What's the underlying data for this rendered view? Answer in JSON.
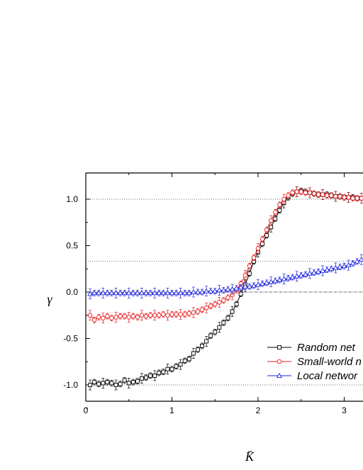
{
  "chart_data": {
    "type": "line",
    "title": "",
    "xlabel": "K̄",
    "ylabel": "γ",
    "xlim": [
      0,
      3.25
    ],
    "ylim": [
      -1.3,
      1.27
    ],
    "x_ticks": [
      "0",
      "1",
      "2",
      "3"
    ],
    "y_ticks": [
      "-1.0",
      "-0.5",
      "0.0",
      "0.5",
      "1.0"
    ],
    "reference_lines": [
      1.0,
      0.33,
      0.0,
      -1.0
    ],
    "legend_position": "bottom-right",
    "series": [
      {
        "name": "Random net",
        "color": "#000000",
        "marker": "square",
        "x": [
          0.05,
          0.1,
          0.15,
          0.2,
          0.25,
          0.3,
          0.35,
          0.4,
          0.45,
          0.5,
          0.55,
          0.6,
          0.65,
          0.7,
          0.75,
          0.8,
          0.85,
          0.9,
          0.95,
          1.0,
          1.05,
          1.1,
          1.15,
          1.2,
          1.25,
          1.3,
          1.35,
          1.4,
          1.45,
          1.5,
          1.55,
          1.6,
          1.65,
          1.7,
          1.75,
          1.8,
          1.85,
          1.9,
          1.95,
          2.0,
          2.05,
          2.1,
          2.15,
          2.2,
          2.25,
          2.3,
          2.35,
          2.4,
          2.45,
          2.5,
          2.55,
          2.6,
          2.65,
          2.7,
          2.75,
          2.8,
          2.85,
          2.9,
          2.95,
          3.0,
          3.05,
          3.1,
          3.15,
          3.2
        ],
        "y": [
          -1.0,
          -0.97,
          -0.99,
          -0.98,
          -0.97,
          -0.98,
          -1.0,
          -0.99,
          -0.95,
          -0.98,
          -0.97,
          -0.96,
          -0.93,
          -0.92,
          -0.9,
          -0.9,
          -0.87,
          -0.86,
          -0.83,
          -0.83,
          -0.8,
          -0.78,
          -0.74,
          -0.72,
          -0.66,
          -0.62,
          -0.58,
          -0.53,
          -0.47,
          -0.43,
          -0.38,
          -0.33,
          -0.28,
          -0.21,
          -0.13,
          -0.02,
          0.08,
          0.2,
          0.33,
          0.43,
          0.52,
          0.61,
          0.7,
          0.79,
          0.88,
          0.96,
          1.02,
          1.06,
          1.08,
          1.09,
          1.08,
          1.07,
          1.06,
          1.05,
          1.05,
          1.05,
          1.04,
          1.03,
          1.03,
          1.02,
          1.02,
          1.02,
          1.01,
          1.01
        ]
      },
      {
        "name": "Small-world n",
        "color": "#e8191c",
        "marker": "circle",
        "x": [
          0.05,
          0.1,
          0.15,
          0.2,
          0.25,
          0.3,
          0.35,
          0.4,
          0.45,
          0.5,
          0.55,
          0.6,
          0.65,
          0.7,
          0.75,
          0.8,
          0.85,
          0.9,
          0.95,
          1.0,
          1.05,
          1.1,
          1.15,
          1.2,
          1.25,
          1.3,
          1.35,
          1.4,
          1.45,
          1.5,
          1.55,
          1.6,
          1.65,
          1.7,
          1.75,
          1.8,
          1.85,
          1.9,
          1.95,
          2.0,
          2.05,
          2.1,
          2.15,
          2.2,
          2.25,
          2.3,
          2.35,
          2.4,
          2.45,
          2.5,
          2.55,
          2.6,
          2.65,
          2.7,
          2.75,
          2.8,
          2.85,
          2.9,
          2.95,
          3.0,
          3.05,
          3.1,
          3.15,
          3.2
        ],
        "y": [
          -0.25,
          -0.3,
          -0.27,
          -0.28,
          -0.26,
          -0.28,
          -0.27,
          -0.26,
          -0.26,
          -0.27,
          -0.26,
          -0.27,
          -0.25,
          -0.26,
          -0.25,
          -0.25,
          -0.25,
          -0.24,
          -0.25,
          -0.24,
          -0.24,
          -0.24,
          -0.24,
          -0.23,
          -0.22,
          -0.21,
          -0.19,
          -0.17,
          -0.15,
          -0.13,
          -0.11,
          -0.09,
          -0.06,
          -0.03,
          0.02,
          0.09,
          0.18,
          0.28,
          0.37,
          0.47,
          0.57,
          0.67,
          0.77,
          0.86,
          0.94,
          1.0,
          1.04,
          1.07,
          1.08,
          1.08,
          1.07,
          1.07,
          1.06,
          1.05,
          1.05,
          1.04,
          1.04,
          1.03,
          1.03,
          1.02,
          1.02,
          1.01,
          1.01,
          1.01
        ]
      },
      {
        "name": "Local networ",
        "color": "#1a22e0",
        "marker": "triangle",
        "x": [
          0.05,
          0.1,
          0.15,
          0.2,
          0.25,
          0.3,
          0.35,
          0.4,
          0.45,
          0.5,
          0.55,
          0.6,
          0.65,
          0.7,
          0.75,
          0.8,
          0.85,
          0.9,
          0.95,
          1.0,
          1.05,
          1.1,
          1.15,
          1.2,
          1.25,
          1.3,
          1.35,
          1.4,
          1.45,
          1.5,
          1.55,
          1.6,
          1.65,
          1.7,
          1.75,
          1.8,
          1.85,
          1.9,
          1.95,
          2.0,
          2.05,
          2.1,
          2.15,
          2.2,
          2.25,
          2.3,
          2.35,
          2.4,
          2.45,
          2.5,
          2.55,
          2.6,
          2.65,
          2.7,
          2.75,
          2.8,
          2.85,
          2.9,
          2.95,
          3.0,
          3.05,
          3.1,
          3.15,
          3.2
        ],
        "y": [
          -0.02,
          -0.01,
          -0.01,
          -0.01,
          -0.01,
          -0.01,
          -0.01,
          -0.01,
          -0.01,
          -0.01,
          -0.01,
          -0.01,
          -0.01,
          -0.01,
          -0.01,
          -0.01,
          -0.01,
          -0.01,
          -0.01,
          -0.01,
          -0.01,
          -0.01,
          -0.01,
          -0.01,
          0.0,
          0.0,
          0.0,
          0.01,
          0.01,
          0.01,
          0.02,
          0.02,
          0.03,
          0.03,
          0.04,
          0.05,
          0.06,
          0.06,
          0.07,
          0.08,
          0.09,
          0.1,
          0.11,
          0.12,
          0.13,
          0.14,
          0.15,
          0.16,
          0.17,
          0.18,
          0.19,
          0.2,
          0.21,
          0.22,
          0.23,
          0.24,
          0.25,
          0.26,
          0.27,
          0.28,
          0.29,
          0.31,
          0.33,
          0.35
        ]
      }
    ]
  }
}
